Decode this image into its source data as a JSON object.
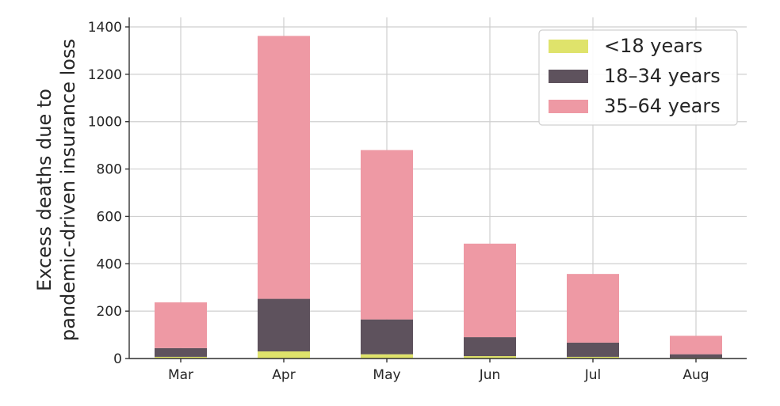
{
  "chart_data": {
    "type": "bar",
    "stacked": true,
    "categories": [
      "Mar",
      "Apr",
      "May",
      "Jun",
      "Jul",
      "Aug"
    ],
    "series": [
      {
        "name": "<18 years",
        "color": "#dfe36b",
        "values": [
          7,
          30,
          18,
          10,
          7,
          3
        ]
      },
      {
        "name": "18–34 years",
        "color": "#5e525d",
        "values": [
          37,
          222,
          147,
          80,
          60,
          15
        ]
      },
      {
        "name": "35–64 years",
        "color": "#ee99a4",
        "values": [
          193,
          1110,
          715,
          395,
          290,
          78
        ]
      }
    ],
    "title": "",
    "xlabel": "",
    "ylabel_lines": [
      "Excess deaths due to",
      "pandemic-driven insurance loss"
    ],
    "ylim": [
      0,
      1400
    ],
    "yticks": [
      0,
      200,
      400,
      600,
      800,
      1000,
      1200,
      1400
    ],
    "grid": true,
    "legend_position": "top-right"
  }
}
